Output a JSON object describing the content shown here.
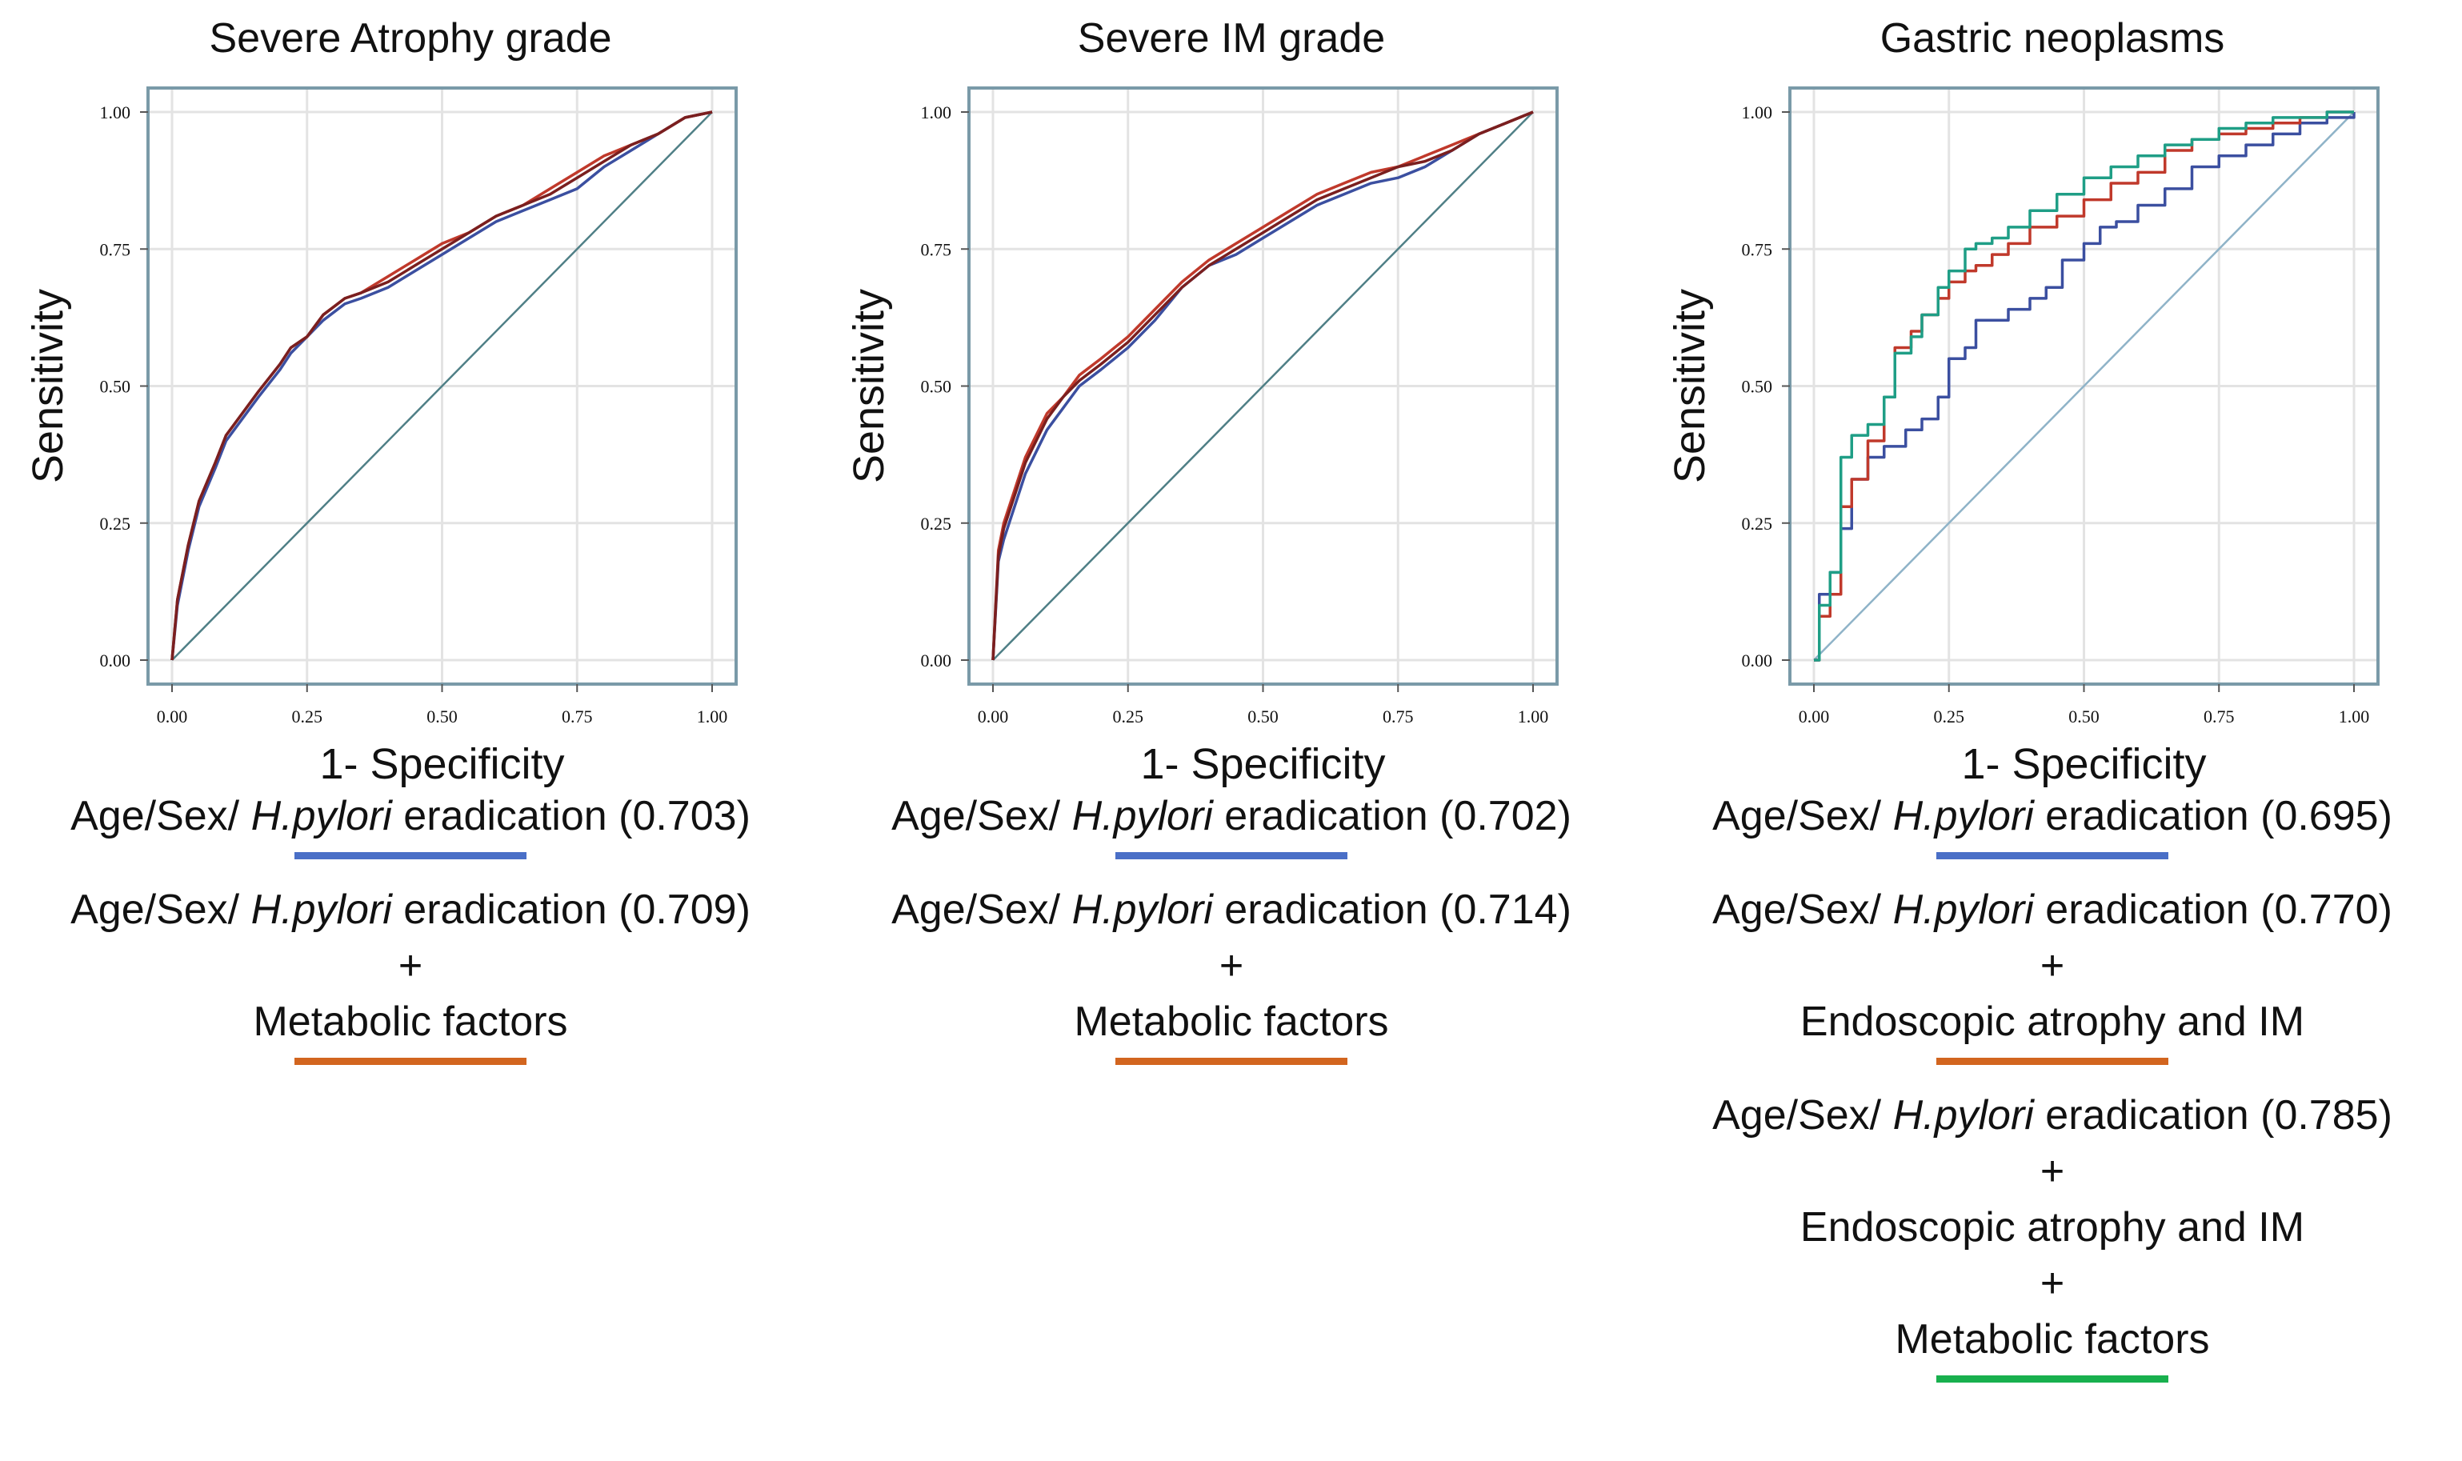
{
  "swatch_colors": {
    "blue": "#4a6fc7",
    "orange": "#d2651f",
    "green": "#18b04e"
  },
  "line_colors": {
    "blue": "#3b4fa0",
    "red": "#c0392b",
    "darkred": "#7a1f1f",
    "teal": "#1f9e86",
    "diagonal": "#4f7f86",
    "diagonal_light": "#8fb3c8"
  },
  "panels": [
    {
      "title": "Severe Atrophy grade",
      "ylabel": "Sensitivity",
      "xlabel": "1- Specificity",
      "legend": [
        {
          "prefix": "Age/Sex/ ",
          "italic": "H.pylori",
          "suffix": " eradication (0.703)",
          "extra": [],
          "swatch": "blue"
        },
        {
          "prefix": "Age/Sex/ ",
          "italic": "H.pylori",
          "suffix": " eradication (0.709)",
          "extra": [
            "+",
            "Metabolic factors"
          ],
          "swatch": "orange"
        }
      ]
    },
    {
      "title": "Severe IM grade",
      "ylabel": "Sensitivity",
      "xlabel": "1- Specificity",
      "legend": [
        {
          "prefix": "Age/Sex/ ",
          "italic": "H.pylori",
          "suffix": " eradication (0.702)",
          "extra": [],
          "swatch": "blue"
        },
        {
          "prefix": "Age/Sex/ ",
          "italic": "H.pylori",
          "suffix": " eradication (0.714)",
          "extra": [
            "+",
            "Metabolic factors"
          ],
          "swatch": "orange"
        }
      ]
    },
    {
      "title": "Gastric neoplasms",
      "ylabel": "Sensitivity",
      "xlabel": "1- Specificity",
      "legend": [
        {
          "prefix": "Age/Sex/ ",
          "italic": "H.pylori",
          "suffix": " eradication (0.695)",
          "extra": [],
          "swatch": "blue"
        },
        {
          "prefix": "Age/Sex/ ",
          "italic": "H.pylori",
          "suffix": " eradication (0.770)",
          "extra": [
            "+",
            "Endoscopic atrophy and IM"
          ],
          "swatch": "orange"
        },
        {
          "prefix": "Age/Sex/ ",
          "italic": "H.pylori",
          "suffix": " eradication (0.785)",
          "extra": [
            "+",
            "Endoscopic atrophy and IM",
            "+",
            "Metabolic factors"
          ],
          "swatch": "green"
        }
      ]
    }
  ],
  "chart_data": [
    {
      "type": "line",
      "title": "Severe Atrophy grade",
      "xlabel": "1- Specificity",
      "ylabel": "Sensitivity",
      "xlim": [
        0,
        1
      ],
      "ylim": [
        0,
        1
      ],
      "ticks": [
        "0.00",
        "0.25",
        "0.50",
        "0.75",
        "1.00"
      ],
      "grid": true,
      "series": [
        {
          "color": "#3b4fa0",
          "step": false,
          "x": [
            0,
            0.01,
            0.03,
            0.05,
            0.08,
            0.1,
            0.13,
            0.16,
            0.2,
            0.22,
            0.25,
            0.28,
            0.32,
            0.35,
            0.4,
            0.45,
            0.5,
            0.55,
            0.6,
            0.65,
            0.7,
            0.75,
            0.8,
            0.85,
            0.9,
            0.95,
            1.0
          ],
          "y": [
            0,
            0.1,
            0.2,
            0.28,
            0.35,
            0.4,
            0.44,
            0.48,
            0.53,
            0.56,
            0.59,
            0.62,
            0.65,
            0.66,
            0.68,
            0.71,
            0.74,
            0.77,
            0.8,
            0.82,
            0.84,
            0.86,
            0.9,
            0.93,
            0.96,
            0.99,
            1.0
          ]
        },
        {
          "color": "#c0392b",
          "step": false,
          "x": [
            0,
            0.01,
            0.03,
            0.05,
            0.08,
            0.1,
            0.13,
            0.16,
            0.2,
            0.22,
            0.25,
            0.28,
            0.32,
            0.35,
            0.4,
            0.45,
            0.5,
            0.55,
            0.6,
            0.65,
            0.7,
            0.75,
            0.8,
            0.85,
            0.9,
            0.95,
            1.0
          ],
          "y": [
            0,
            0.11,
            0.21,
            0.29,
            0.36,
            0.41,
            0.45,
            0.49,
            0.54,
            0.57,
            0.59,
            0.63,
            0.66,
            0.67,
            0.7,
            0.73,
            0.76,
            0.78,
            0.81,
            0.83,
            0.86,
            0.89,
            0.92,
            0.94,
            0.96,
            0.99,
            1.0
          ]
        },
        {
          "color": "#7a1f1f",
          "step": false,
          "x": [
            0,
            0.01,
            0.03,
            0.05,
            0.08,
            0.1,
            0.13,
            0.16,
            0.2,
            0.22,
            0.25,
            0.28,
            0.32,
            0.35,
            0.4,
            0.45,
            0.5,
            0.55,
            0.6,
            0.65,
            0.7,
            0.75,
            0.8,
            0.85,
            0.9,
            0.95,
            1.0
          ],
          "y": [
            0,
            0.11,
            0.21,
            0.29,
            0.36,
            0.41,
            0.45,
            0.49,
            0.54,
            0.57,
            0.59,
            0.63,
            0.66,
            0.67,
            0.69,
            0.72,
            0.75,
            0.78,
            0.81,
            0.83,
            0.85,
            0.88,
            0.91,
            0.94,
            0.96,
            0.99,
            1.0
          ]
        }
      ]
    },
    {
      "type": "line",
      "title": "Severe IM grade",
      "xlabel": "1- Specificity",
      "ylabel": "Sensitivity",
      "xlim": [
        0,
        1
      ],
      "ylim": [
        0,
        1
      ],
      "ticks": [
        "0.00",
        "0.25",
        "0.50",
        "0.75",
        "1.00"
      ],
      "grid": true,
      "series": [
        {
          "color": "#3b4fa0",
          "step": false,
          "x": [
            0,
            0.01,
            0.02,
            0.04,
            0.06,
            0.08,
            0.1,
            0.13,
            0.16,
            0.2,
            0.25,
            0.3,
            0.35,
            0.4,
            0.45,
            0.5,
            0.55,
            0.6,
            0.65,
            0.7,
            0.75,
            0.8,
            0.85,
            0.9,
            0.95,
            1.0
          ],
          "y": [
            0,
            0.18,
            0.22,
            0.28,
            0.34,
            0.38,
            0.42,
            0.46,
            0.5,
            0.53,
            0.57,
            0.62,
            0.68,
            0.72,
            0.74,
            0.77,
            0.8,
            0.83,
            0.85,
            0.87,
            0.88,
            0.9,
            0.93,
            0.96,
            0.98,
            1.0
          ]
        },
        {
          "color": "#c0392b",
          "step": false,
          "x": [
            0,
            0.01,
            0.02,
            0.04,
            0.06,
            0.08,
            0.1,
            0.13,
            0.16,
            0.2,
            0.25,
            0.3,
            0.35,
            0.4,
            0.45,
            0.5,
            0.55,
            0.6,
            0.65,
            0.7,
            0.75,
            0.8,
            0.85,
            0.9,
            0.95,
            1.0
          ],
          "y": [
            0,
            0.2,
            0.25,
            0.31,
            0.37,
            0.41,
            0.45,
            0.48,
            0.52,
            0.55,
            0.59,
            0.64,
            0.69,
            0.73,
            0.76,
            0.79,
            0.82,
            0.85,
            0.87,
            0.89,
            0.9,
            0.92,
            0.94,
            0.96,
            0.98,
            1.0
          ]
        },
        {
          "color": "#7a1f1f",
          "step": false,
          "x": [
            0,
            0.01,
            0.02,
            0.04,
            0.06,
            0.08,
            0.1,
            0.13,
            0.16,
            0.2,
            0.25,
            0.3,
            0.35,
            0.4,
            0.45,
            0.5,
            0.55,
            0.6,
            0.65,
            0.7,
            0.75,
            0.8,
            0.85,
            0.9,
            0.95,
            1.0
          ],
          "y": [
            0,
            0.19,
            0.24,
            0.3,
            0.36,
            0.4,
            0.44,
            0.48,
            0.51,
            0.54,
            0.58,
            0.63,
            0.68,
            0.72,
            0.75,
            0.78,
            0.81,
            0.84,
            0.86,
            0.88,
            0.9,
            0.91,
            0.93,
            0.96,
            0.98,
            1.0
          ]
        }
      ]
    },
    {
      "type": "line",
      "title": "Gastric neoplasms",
      "xlabel": "1- Specificity",
      "ylabel": "Sensitivity",
      "xlim": [
        0,
        1
      ],
      "ylim": [
        0,
        1
      ],
      "ticks": [
        "0.00",
        "0.25",
        "0.50",
        "0.75",
        "1.00"
      ],
      "grid": true,
      "series": [
        {
          "color": "#3b4fa0",
          "step": true,
          "x": [
            0,
            0.01,
            0.03,
            0.05,
            0.07,
            0.1,
            0.13,
            0.17,
            0.2,
            0.23,
            0.25,
            0.28,
            0.3,
            0.33,
            0.36,
            0.4,
            0.43,
            0.46,
            0.5,
            0.53,
            0.56,
            0.6,
            0.65,
            0.7,
            0.75,
            0.8,
            0.85,
            0.9,
            0.95,
            1.0
          ],
          "y": [
            0,
            0.12,
            0.16,
            0.24,
            0.33,
            0.37,
            0.39,
            0.42,
            0.44,
            0.48,
            0.55,
            0.57,
            0.62,
            0.62,
            0.64,
            0.66,
            0.68,
            0.73,
            0.76,
            0.79,
            0.8,
            0.83,
            0.86,
            0.9,
            0.92,
            0.94,
            0.96,
            0.98,
            0.99,
            1.0
          ]
        },
        {
          "color": "#c0392b",
          "step": true,
          "x": [
            0,
            0.01,
            0.03,
            0.05,
            0.07,
            0.1,
            0.13,
            0.15,
            0.18,
            0.2,
            0.23,
            0.25,
            0.28,
            0.3,
            0.33,
            0.36,
            0.4,
            0.45,
            0.5,
            0.55,
            0.6,
            0.65,
            0.7,
            0.75,
            0.8,
            0.85,
            0.9,
            0.95,
            1.0
          ],
          "y": [
            0,
            0.08,
            0.12,
            0.28,
            0.33,
            0.4,
            0.48,
            0.57,
            0.6,
            0.63,
            0.66,
            0.69,
            0.71,
            0.72,
            0.74,
            0.76,
            0.79,
            0.81,
            0.84,
            0.87,
            0.89,
            0.93,
            0.95,
            0.96,
            0.97,
            0.98,
            0.99,
            1.0,
            1.0
          ]
        },
        {
          "color": "#1f9e86",
          "step": true,
          "x": [
            0,
            0.01,
            0.03,
            0.05,
            0.07,
            0.1,
            0.13,
            0.15,
            0.18,
            0.2,
            0.23,
            0.25,
            0.28,
            0.3,
            0.33,
            0.36,
            0.4,
            0.45,
            0.5,
            0.55,
            0.6,
            0.65,
            0.7,
            0.75,
            0.8,
            0.85,
            0.9,
            0.95,
            1.0
          ],
          "y": [
            0,
            0.1,
            0.16,
            0.37,
            0.41,
            0.43,
            0.48,
            0.56,
            0.59,
            0.63,
            0.68,
            0.71,
            0.75,
            0.76,
            0.77,
            0.79,
            0.82,
            0.85,
            0.88,
            0.9,
            0.92,
            0.94,
            0.95,
            0.97,
            0.98,
            0.99,
            0.99,
            1.0,
            1.0
          ]
        }
      ]
    }
  ]
}
